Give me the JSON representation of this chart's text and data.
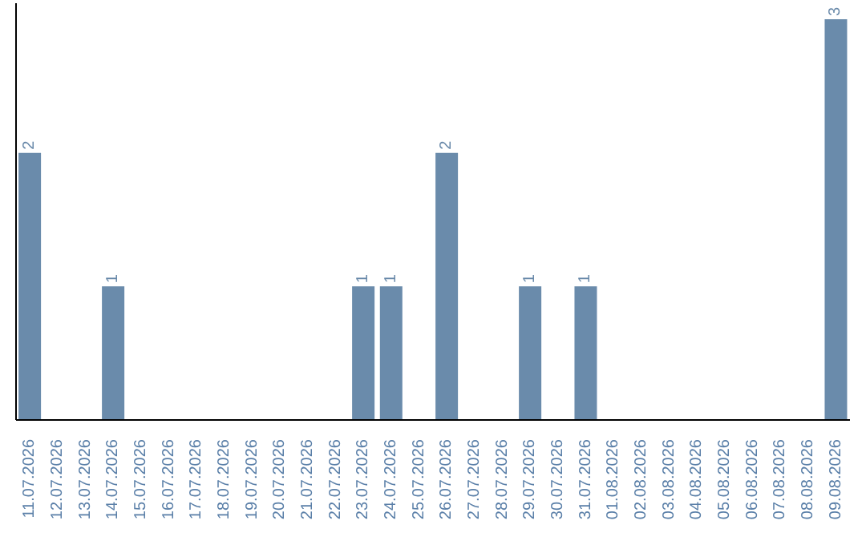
{
  "chart_data": {
    "type": "bar",
    "categories": [
      "11.07.2026",
      "12.07.2026",
      "13.07.2026",
      "14.07.2026",
      "15.07.2026",
      "16.07.2026",
      "17.07.2026",
      "18.07.2026",
      "19.07.2026",
      "20.07.2026",
      "21.07.2026",
      "22.07.2026",
      "23.07.2026",
      "24.07.2026",
      "25.07.2026",
      "26.07.2026",
      "27.07.2026",
      "28.07.2026",
      "29.07.2026",
      "30.07.2026",
      "31.07.2026",
      "01.08.2026",
      "02.08.2026",
      "03.08.2026",
      "04.08.2026",
      "05.08.2026",
      "06.08.2026",
      "07.08.2026",
      "08.08.2026",
      "09.08.2026"
    ],
    "values": [
      2,
      0,
      0,
      1,
      0,
      0,
      0,
      0,
      0,
      0,
      0,
      0,
      1,
      1,
      0,
      2,
      0,
      0,
      1,
      0,
      1,
      0,
      0,
      0,
      0,
      0,
      0,
      0,
      0,
      3
    ],
    "value_labels": [
      "2",
      null,
      null,
      "1",
      null,
      null,
      null,
      null,
      null,
      null,
      null,
      null,
      "1",
      "1",
      null,
      "2",
      null,
      null,
      "1",
      null,
      "1",
      null,
      null,
      null,
      null,
      null,
      null,
      null,
      null,
      "3"
    ],
    "color": "#6a8bab",
    "grid": false,
    "legend": false
  }
}
